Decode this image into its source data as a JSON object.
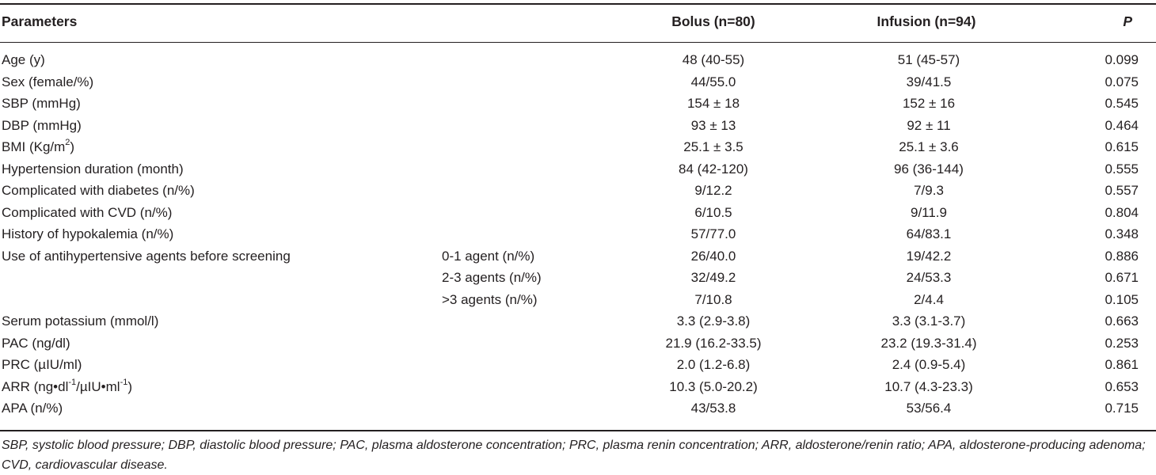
{
  "header": {
    "parameters": "Parameters",
    "bolus": "Bolus (n=80)",
    "infusion": "Infusion (n=94)",
    "p": "P"
  },
  "rows": [
    {
      "param": "Age (y)",
      "sub": "",
      "bolus": "48 (40-55)",
      "infusion": "51 (45-57)",
      "p": "0.099"
    },
    {
      "param": "Sex (female/%)",
      "sub": "",
      "bolus": "44/55.0",
      "infusion": "39/41.5",
      "p": "0.075"
    },
    {
      "param": "SBP (mmHg)",
      "sub": "",
      "bolus": "154 ± 18",
      "infusion": "152 ± 16",
      "p": "0.545"
    },
    {
      "param": "DBP (mmHg)",
      "sub": "",
      "bolus": "93 ± 13",
      "infusion": "92 ± 11",
      "p": "0.464"
    },
    {
      "param": "BMI (Kg/m",
      "param_sup": "2",
      "param_tail": ")",
      "sub": "",
      "bolus": "25.1 ± 3.5",
      "infusion": "25.1 ± 3.6",
      "p": "0.615"
    },
    {
      "param": "Hypertension duration (month)",
      "sub": "",
      "bolus": "84 (42-120)",
      "infusion": "96 (36-144)",
      "p": "0.555"
    },
    {
      "param": "Complicated with diabetes (n/%)",
      "sub": "",
      "bolus": "9/12.2",
      "infusion": "7/9.3",
      "p": "0.557"
    },
    {
      "param": "Complicated with CVD (n/%)",
      "sub": "",
      "bolus": "6/10.5",
      "infusion": "9/11.9",
      "p": "0.804"
    },
    {
      "param": "History of hypokalemia (n/%)",
      "sub": "",
      "bolus": "57/77.0",
      "infusion": "64/83.1",
      "p": "0.348"
    },
    {
      "param": "Use of antihypertensive agents before screening",
      "sub": "0-1 agent (n/%)",
      "bolus": "26/40.0",
      "infusion": "19/42.2",
      "p": "0.886"
    },
    {
      "param": "",
      "sub": "2-3 agents (n/%)",
      "bolus": "32/49.2",
      "infusion": "24/53.3",
      "p": "0.671"
    },
    {
      "param": "",
      "sub": ">3 agents (n/%)",
      "bolus": "7/10.8",
      "infusion": "2/4.4",
      "p": "0.105"
    },
    {
      "param": "Serum potassium (mmol/l)",
      "sub": "",
      "bolus": "3.3 (2.9-3.8)",
      "infusion": "3.3 (3.1-3.7)",
      "p": "0.663"
    },
    {
      "param": "PAC (ng/dl)",
      "sub": "",
      "bolus": "21.9 (16.2-33.5)",
      "infusion": "23.2 (19.3-31.4)",
      "p": "0.253"
    },
    {
      "param": "PRC (µIU/ml)",
      "sub": "",
      "bolus": "2.0 (1.2-6.8)",
      "infusion": "2.4 (0.9-5.4)",
      "p": "0.861"
    },
    {
      "param": "ARR (ng•dl",
      "param_sup": "-1",
      "param_mid": "/µIU•ml",
      "param_sup2": "-1",
      "param_tail": ")",
      "sub": "",
      "bolus": "10.3 (5.0-20.2)",
      "infusion": "10.7 (4.3-23.3)",
      "p": "0.653"
    },
    {
      "param": "APA (n/%)",
      "sub": "",
      "bolus": "43/53.8",
      "infusion": "53/56.4",
      "p": "0.715"
    }
  ],
  "footnote": "SBP, systolic blood pressure; DBP, diastolic blood pressure; PAC, plasma aldosterone concentration; PRC, plasma renin concentration; ARR, aldosterone/renin ratio; APA, aldosterone-producing adenoma; CVD, cardiovascular disease."
}
